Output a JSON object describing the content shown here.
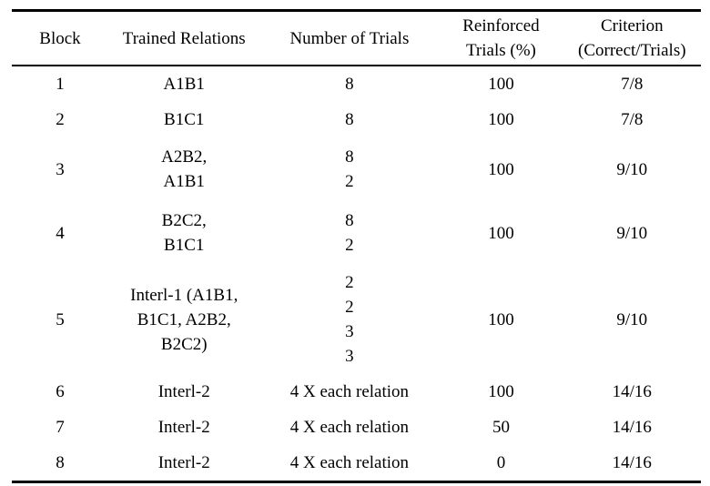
{
  "table": {
    "headers": {
      "block": "Block",
      "trained_relations": "Trained Relations",
      "number_of_trials": "Number of Trials",
      "reinforced_line1": "Reinforced",
      "reinforced_line2": "Trials (%)",
      "criterion_line1": "Criterion",
      "criterion_line2": "(Correct/Trials)"
    },
    "rows": [
      {
        "block": "1",
        "relations": [
          "A1B1"
        ],
        "trials": [
          "8"
        ],
        "reinforced": "100",
        "criterion": "7/8"
      },
      {
        "block": "2",
        "relations": [
          "B1C1"
        ],
        "trials": [
          "8"
        ],
        "reinforced": "100",
        "criterion": "7/8"
      },
      {
        "block": "3",
        "relations": [
          "A2B2,",
          "A1B1"
        ],
        "trials": [
          "8",
          "2"
        ],
        "reinforced": "100",
        "criterion": "9/10"
      },
      {
        "block": "4",
        "relations": [
          "B2C2,",
          "B1C1"
        ],
        "trials": [
          "8",
          "2"
        ],
        "reinforced": "100",
        "criterion": "9/10"
      },
      {
        "block": "5",
        "relations": [
          "Interl-1 (A1B1,",
          "B1C1, A2B2,",
          "B2C2)"
        ],
        "trials": [
          "2",
          "2",
          "3",
          "3"
        ],
        "reinforced": "100",
        "criterion": "9/10"
      },
      {
        "block": "6",
        "relations": [
          "Interl-2"
        ],
        "trials": [
          "4 X each relation"
        ],
        "reinforced": "100",
        "criterion": "14/16"
      },
      {
        "block": "7",
        "relations": [
          "Interl-2"
        ],
        "trials": [
          "4 X each relation"
        ],
        "reinforced": "50",
        "criterion": "14/16"
      },
      {
        "block": "8",
        "relations": [
          "Interl-2"
        ],
        "trials": [
          "4 X each relation"
        ],
        "reinforced": "0",
        "criterion": "14/16"
      }
    ],
    "colors": {
      "text": "#000000",
      "background": "#ffffff",
      "rule": "#000000"
    }
  }
}
